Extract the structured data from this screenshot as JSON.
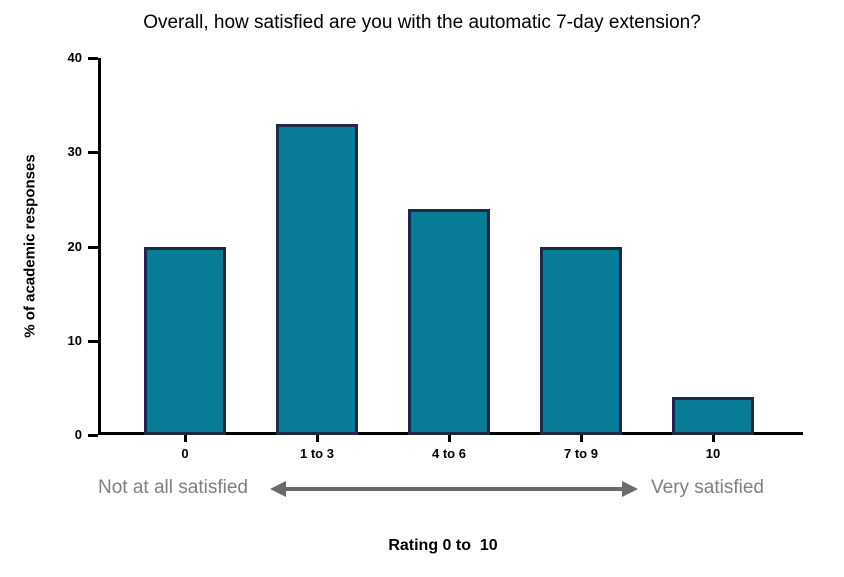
{
  "chart_data": {
    "type": "bar",
    "title": "Overall, how satisfied are you with the automatic 7-day extension?",
    "categories": [
      "0",
      "1 to 3",
      "4 to 6",
      "7 to 9",
      "10"
    ],
    "values": [
      20,
      33,
      24,
      20,
      4
    ],
    "xlabel": "Rating 0 to  10",
    "ylabel": "% of academic responses",
    "ylim": [
      0,
      40
    ],
    "yticks": [
      0,
      10,
      20,
      30,
      40
    ],
    "grid": false,
    "legend": null,
    "colors": {
      "bar_fill": "#087c96",
      "bar_border": "#1f2945",
      "axis": "#000000",
      "annotation_text": "#7f7f7f",
      "annotation_arrow": "#6b6b6b"
    },
    "annotation": {
      "left_label": "Not at all satisfied",
      "right_label": "Very satisfied",
      "arrow": "double-headed"
    }
  }
}
